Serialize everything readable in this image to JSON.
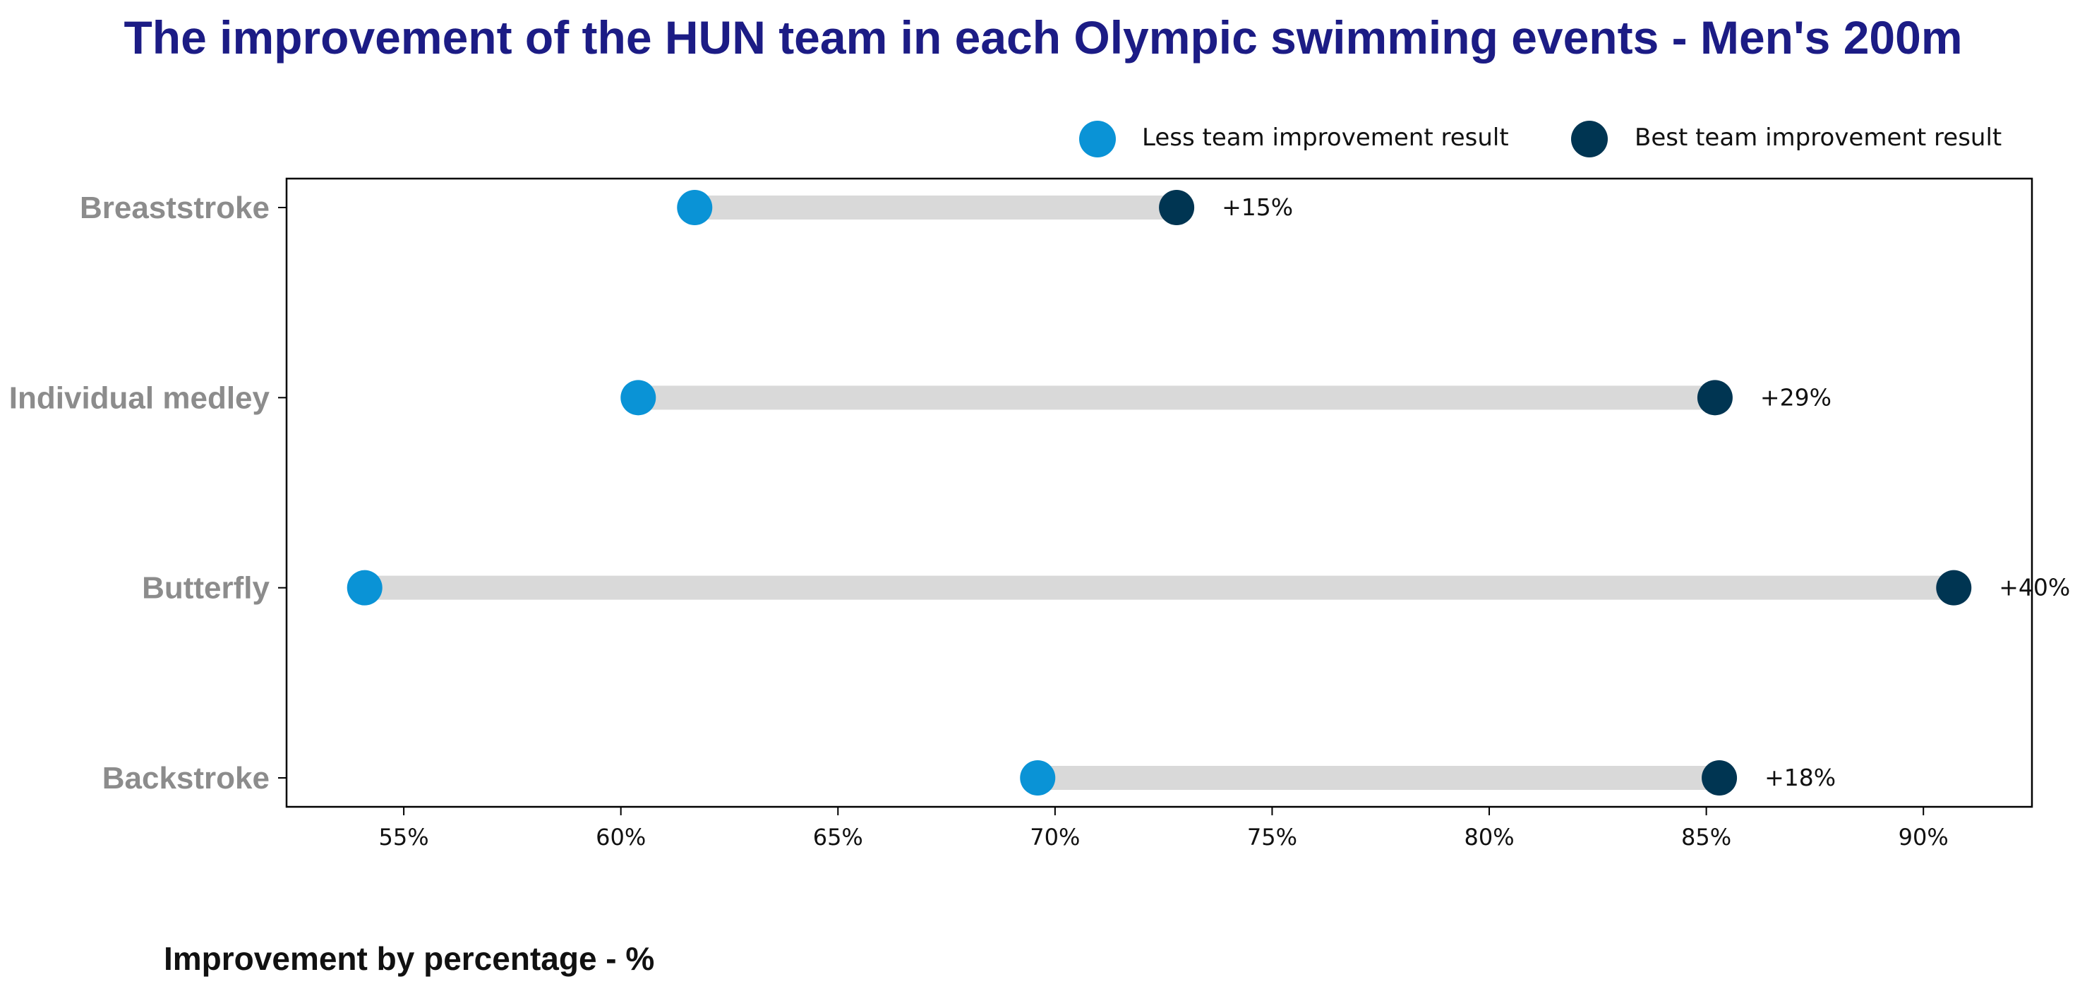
{
  "chart_data": {
    "type": "dumbbell",
    "title": "The improvement of the HUN team in each Olympic swimming events - Men's 200m",
    "xlabel": "Improvement by percentage - %",
    "ylabel": "",
    "xlim": [
      52.3,
      92.5
    ],
    "xticks": [
      55,
      60,
      65,
      70,
      75,
      80,
      85,
      90
    ],
    "xtick_labels": [
      "55%",
      "60%",
      "65%",
      "70%",
      "75%",
      "80%",
      "85%",
      "90%"
    ],
    "categories": [
      "Breaststroke",
      "Individual medley",
      "Butterfly",
      "Backstroke"
    ],
    "series": [
      {
        "name": "Less team improvement result",
        "color": "#0a93d6",
        "values": [
          61.7,
          60.4,
          54.1,
          69.6
        ]
      },
      {
        "name": "Best team improvement result",
        "color": "#003552",
        "values": [
          72.8,
          85.2,
          90.7,
          85.3
        ]
      }
    ],
    "difference_labels": [
      "+15%",
      "+29%",
      "+40%",
      "+18%"
    ],
    "connector_color": "#d9d9d9",
    "legend": "top-right",
    "grid": false
  }
}
